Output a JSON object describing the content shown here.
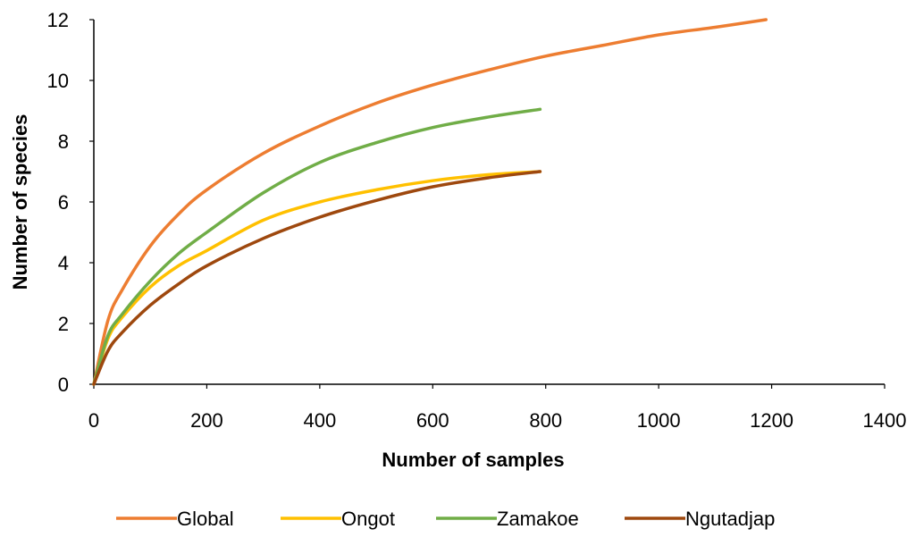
{
  "chart_data": {
    "type": "line",
    "xlabel": "Number of samples",
    "ylabel": "Number of species",
    "xlim": [
      0,
      1400
    ],
    "ylim": [
      0,
      12
    ],
    "x_ticks": [
      "0",
      "200",
      "400",
      "600",
      "800",
      "1000",
      "1200",
      "1400"
    ],
    "y_ticks": [
      "0",
      "2",
      "4",
      "6",
      "8",
      "10",
      "12"
    ],
    "grid": false,
    "legend_position": "bottom",
    "series": [
      {
        "name": "Global",
        "color": "#ED7D31",
        "x": [
          0,
          25,
          50,
          100,
          150,
          200,
          300,
          400,
          500,
          600,
          700,
          800,
          900,
          1000,
          1100,
          1190
        ],
        "y": [
          0,
          2.1,
          3.1,
          4.55,
          5.6,
          6.4,
          7.6,
          8.5,
          9.25,
          9.85,
          10.35,
          10.8,
          11.15,
          11.5,
          11.75,
          12.0
        ]
      },
      {
        "name": "Ongot",
        "color": "#FFC000",
        "x": [
          0,
          25,
          50,
          100,
          150,
          200,
          300,
          400,
          500,
          600,
          700,
          790
        ],
        "y": [
          0,
          1.5,
          2.2,
          3.2,
          3.9,
          4.4,
          5.4,
          6.0,
          6.4,
          6.7,
          6.9,
          7.0
        ]
      },
      {
        "name": "Zamakoe",
        "color": "#70AD47",
        "x": [
          0,
          25,
          50,
          100,
          150,
          200,
          300,
          400,
          500,
          600,
          700,
          790
        ],
        "y": [
          0,
          1.6,
          2.3,
          3.4,
          4.3,
          5.0,
          6.3,
          7.3,
          7.95,
          8.45,
          8.8,
          9.05
        ]
      },
      {
        "name": "Ngutadjap",
        "color": "#9E480E",
        "x": [
          0,
          25,
          50,
          100,
          150,
          200,
          300,
          400,
          500,
          600,
          700,
          790
        ],
        "y": [
          0,
          1.1,
          1.7,
          2.6,
          3.3,
          3.9,
          4.8,
          5.5,
          6.05,
          6.5,
          6.8,
          7.0
        ]
      }
    ]
  }
}
